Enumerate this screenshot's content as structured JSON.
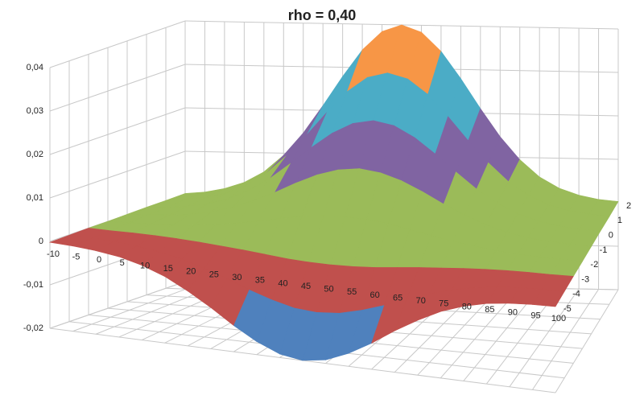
{
  "chart_data": {
    "type": "surface3d",
    "title": "rho = 0,40",
    "categories": [
      -10,
      -5,
      0,
      5,
      10,
      15,
      20,
      25,
      30,
      35,
      40,
      45,
      50,
      55,
      60,
      65,
      70,
      75,
      80,
      85,
      90,
      95,
      100
    ],
    "depth_categories": [
      2,
      1,
      0,
      -1,
      -2,
      -3,
      -4,
      -5
    ],
    "values": [
      [
        0.0003,
        0.0007,
        0.0016,
        0.0031,
        0.0056,
        0.0095,
        0.0147,
        0.0211,
        0.0279,
        0.0341,
        0.0384,
        0.04,
        0.0384,
        0.0341,
        0.0279,
        0.0211,
        0.0147,
        0.0095,
        0.0056,
        0.0031,
        0.0016,
        0.0007,
        0.0003
      ],
      [
        0.0002,
        0.0006,
        0.0012,
        0.0024,
        0.0044,
        0.0074,
        0.0116,
        0.0165,
        0.0219,
        0.0268,
        0.0302,
        0.0314,
        0.0302,
        0.0268,
        0.0219,
        0.0165,
        0.0116,
        0.0074,
        0.0044,
        0.0024,
        0.0012,
        0.0006,
        0.0002
      ],
      [
        0.0002,
        0.0004,
        0.0009,
        0.0018,
        0.0032,
        0.0054,
        0.0084,
        0.0121,
        0.016,
        0.0195,
        0.022,
        0.0229,
        0.022,
        0.0195,
        0.016,
        0.0121,
        0.0084,
        0.0054,
        0.0032,
        0.0018,
        0.0009,
        0.0004,
        0.0002
      ],
      [
        0.0001,
        0.0003,
        0.0006,
        0.0011,
        0.002,
        0.0034,
        0.0053,
        0.0075,
        0.01,
        0.0122,
        0.0137,
        0.0143,
        0.0137,
        0.0122,
        0.01,
        0.0075,
        0.0053,
        0.0034,
        0.002,
        0.0011,
        0.0006,
        0.0003,
        0.0001
      ],
      [
        0,
        0.0001,
        0.0002,
        0.0004,
        0.0008,
        0.0014,
        0.0021,
        0.003,
        0.004,
        0.0049,
        0.0055,
        0.0057,
        0.0055,
        0.0049,
        0.004,
        0.003,
        0.0021,
        0.0014,
        0.0008,
        0.0004,
        0.0002,
        0.0001,
        0
      ],
      [
        0,
        -0.0001,
        -0.0001,
        -0.0002,
        -0.0004,
        -0.0007,
        -0.0011,
        -0.0015,
        -0.002,
        -0.0025,
        -0.0028,
        -0.0029,
        -0.0028,
        -0.0025,
        -0.002,
        -0.0015,
        -0.0011,
        -0.0007,
        -0.0004,
        -0.0002,
        -0.0001,
        -0.0001,
        0
      ],
      [
        -0.0001,
        -0.0002,
        -0.0004,
        -0.0009,
        -0.0016,
        -0.0027,
        -0.0042,
        -0.006,
        -0.008,
        -0.0097,
        -0.011,
        -0.0114,
        -0.011,
        -0.0097,
        -0.008,
        -0.006,
        -0.0042,
        -0.0027,
        -0.0016,
        -0.0009,
        -0.0004,
        -0.0002,
        -0.0001
      ],
      [
        -0.0002,
        -0.0004,
        -0.0008,
        -0.0015,
        -0.0028,
        -0.0047,
        -0.0074,
        -0.0105,
        -0.014,
        -0.017,
        -0.0192,
        -0.02,
        -0.0192,
        -0.017,
        -0.014,
        -0.0105,
        -0.0074,
        -0.0047,
        -0.0028,
        -0.0015,
        -0.0008,
        -0.0004,
        -0.0002
      ]
    ],
    "zlim": [
      -0.02,
      0.04
    ],
    "zticks": [
      {
        "value": -0.02,
        "label": "-0,02"
      },
      {
        "value": -0.01,
        "label": "-0,01"
      },
      0,
      {
        "value": 0.01,
        "label": "0,01"
      },
      {
        "value": 0.02,
        "label": "0,02"
      },
      {
        "value": 0.03,
        "label": "0,03"
      },
      {
        "value": 0.04,
        "label": "0,04"
      }
    ],
    "band_colors": [
      "#4f81bd",
      "#c0504d",
      "#9bbb59",
      "#8064a2",
      "#4bacc6",
      "#f79646"
    ],
    "grid": true
  }
}
